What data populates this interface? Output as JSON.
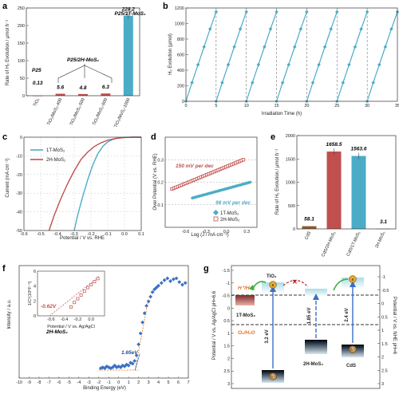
{
  "chart_data": [
    {
      "id": "a",
      "panel_label": "a",
      "type": "bar",
      "ylabel": "Rate of H₂ Evolution / μmol h⁻¹",
      "ylim": [
        0,
        250
      ],
      "yticks": [
        "0",
        "50",
        "100",
        "150",
        "200",
        "250"
      ],
      "categories": [
        "TiO₂",
        "TiO₂/MoS₂-400",
        "TiO₂/MoS₂-500",
        "TiO₂/MoS₂-600",
        "TiO₂/MoS₂-1000"
      ],
      "values": [
        0.13,
        5.6,
        4.8,
        6.3,
        228.2
      ],
      "value_labels": [
        "0.13",
        "5.6",
        "4.8",
        "6.3",
        "228.2"
      ],
      "annotations": [
        "P25",
        "P25/2H-MoS₂",
        "P25/1T-MoS₂"
      ],
      "colors": [
        "#c0504d",
        "#c0504d",
        "#c0504d",
        "#c0504d",
        "#4bacc6"
      ]
    },
    {
      "id": "b",
      "panel_label": "b",
      "type": "line",
      "xlabel": "Irradiation Time (h)",
      "ylabel": "H₂ Evolution (μmol)",
      "xlim": [
        0,
        35
      ],
      "ylim": [
        0,
        1200
      ],
      "xticks": [
        "0",
        "5",
        "10",
        "15",
        "20",
        "25",
        "30",
        "35"
      ],
      "yticks": [
        "0",
        "200",
        "400",
        "600",
        "800",
        "1000",
        "1200"
      ],
      "cycles": 7,
      "cycle_length_h": 5,
      "cycle_points": [
        [
          0,
          0
        ],
        [
          1,
          240
        ],
        [
          2,
          470
        ],
        [
          3,
          700
        ],
        [
          4,
          930
        ],
        [
          5,
          1150
        ]
      ],
      "color": "#4bacc6"
    },
    {
      "id": "c",
      "panel_label": "c",
      "type": "line",
      "xlabel": "Potential / V vs. RHE",
      "ylabel": "Current (mA cm⁻²)",
      "xlim": [
        -0.6,
        0.1
      ],
      "ylim": [
        -50,
        0
      ],
      "xticks": [
        "-0.6",
        "-0.5",
        "-0.4",
        "-0.3",
        "-0.2",
        "-0.1",
        "0.0",
        "0.1"
      ],
      "yticks": [
        "0",
        "-10",
        "-20",
        "-30",
        "-40",
        "-50"
      ],
      "series": [
        {
          "name": "1T-MoS₂",
          "color": "#4bacc6",
          "x": [
            -0.3,
            -0.28,
            -0.25,
            -0.22,
            -0.19,
            -0.16,
            -0.13,
            -0.1,
            -0.07,
            -0.04,
            0.0,
            0.05,
            0.1
          ],
          "y": [
            -50,
            -42,
            -32,
            -23,
            -15,
            -9,
            -5,
            -2.5,
            -1.2,
            -0.5,
            -0.1,
            0,
            0
          ]
        },
        {
          "name": "2H-MoS₂",
          "color": "#c0504d",
          "x": [
            -0.45,
            -0.42,
            -0.38,
            -0.34,
            -0.3,
            -0.26,
            -0.22,
            -0.18,
            -0.14,
            -0.1,
            -0.05,
            0.0,
            0.05,
            0.1
          ],
          "y": [
            -50,
            -42,
            -33,
            -25,
            -18,
            -12,
            -8,
            -5,
            -3,
            -1.6,
            -0.6,
            -0.2,
            0,
            0
          ]
        }
      ]
    },
    {
      "id": "d",
      "panel_label": "d",
      "type": "scatter",
      "xlabel": "Log (J / mA cm⁻²)",
      "ylabel": "Over Potential (V vs. RHE)",
      "xlim": [
        -0.9,
        0.45
      ],
      "ylim": [
        0.0,
        0.4
      ],
      "xticks": [
        "-0.6",
        "-0.3",
        "0.0",
        "0.3"
      ],
      "yticks": [
        "0.1",
        "0.2",
        "0.3"
      ],
      "series": [
        {
          "name": "1T-MoS₂",
          "color": "#4bacc6",
          "x_range": [
            -0.5,
            0.35
          ],
          "y_range": [
            0.13,
            0.2
          ]
        },
        {
          "name": "2H-MoS₂",
          "color": "#c0504d",
          "x_range": [
            -0.8,
            0.25
          ],
          "y_range": [
            0.17,
            0.3
          ]
        }
      ],
      "annotations": [
        "150 mV per dec",
        "98 mV per dec"
      ]
    },
    {
      "id": "e",
      "panel_label": "e",
      "type": "bar",
      "ylabel": "Rate of H₂ Evolution / μmol h⁻¹",
      "ylim": [
        0,
        2000
      ],
      "yticks": [
        "0",
        "500",
        "1000",
        "1500",
        "2000"
      ],
      "categories": [
        "CdS",
        "CdS/2H-MoS₂",
        "CdS/1T-MoS₂",
        "2H-MoS₂"
      ],
      "values": [
        58.1,
        1658.5,
        1563.6,
        3.1
      ],
      "value_labels": [
        "58.1",
        "1658.5",
        "1563.6",
        "3.1"
      ],
      "colors": [
        "#8b5a2b",
        "#c0504d",
        "#4bacc6",
        "#999999"
      ]
    },
    {
      "id": "f",
      "panel_label": "f",
      "type": "scatter",
      "xlabel": "Binding Energy (eV)",
      "ylabel": "Intensity / a.u.",
      "xlim": [
        -10,
        7
      ],
      "xticks": [
        "-10",
        "-9",
        "-8",
        "-7",
        "-6",
        "-5",
        "-4",
        "-3",
        "-2",
        "-1",
        "0",
        "1",
        "2",
        "3",
        "4",
        "5",
        "6",
        "7"
      ],
      "sample": "2H-MoS₂",
      "edge_label": "1.65eV",
      "x": [
        -1.8,
        -1.6,
        -1.4,
        -1.2,
        -1.0,
        -0.8,
        -0.6,
        -0.4,
        -0.2,
        0.0,
        0.2,
        0.4,
        0.6,
        0.8,
        1.0,
        1.2,
        1.4,
        1.6,
        1.8,
        2.0,
        2.2,
        2.4,
        2.6,
        2.8,
        3.0,
        3.2,
        3.4,
        3.6,
        3.8,
        4.0,
        4.3,
        4.6,
        4.9,
        5.2,
        5.5,
        5.8,
        6.1,
        6.4,
        6.7
      ],
      "y": [
        0.02,
        0.03,
        0.02,
        0.04,
        0.03,
        0.02,
        0.03,
        0.05,
        0.03,
        0.04,
        0.03,
        0.05,
        0.04,
        0.06,
        0.05,
        0.08,
        0.07,
        0.1,
        0.16,
        0.28,
        0.4,
        0.52,
        0.62,
        0.7,
        0.75,
        0.8,
        0.85,
        0.88,
        0.9,
        0.92,
        0.95,
        0.98,
        1.0,
        0.97,
        0.99,
        1.0,
        0.96,
        0.93,
        0.95
      ],
      "color": "#3a6fc4",
      "inset": {
        "xlabel": "Potential / V vs. Ag/AgCl",
        "ylabel": "1/C²(10⁸F⁻²)",
        "xticks": [
          "-0.6",
          "-0.4",
          "-0.2",
          "0.0"
        ],
        "yticks": [
          "0",
          "2",
          "4",
          "6"
        ],
        "intercept_label": "-0.62V",
        "x": [
          -0.3,
          -0.25,
          -0.2,
          -0.15,
          -0.1,
          -0.05,
          0.0,
          0.05,
          0.1
        ],
        "y": [
          1.2,
          1.8,
          2.3,
          2.8,
          3.3,
          3.8,
          4.2,
          4.6,
          5.0
        ],
        "color": "#c0504d"
      }
    },
    {
      "id": "g",
      "panel_label": "g",
      "type": "diagram",
      "left_axis_label": "Potential / V vs. Ag/AgCl pH=6.6",
      "right_axis_label": "Potential / V vs. NHE pH=6",
      "left_ticks": [
        "-1.5",
        "-1",
        "-0.5",
        "0",
        "0.5",
        "1",
        "1.5",
        "2",
        "2.5",
        "3"
      ],
      "right_ticks": [
        "-1",
        "-0.5",
        "0",
        "0.5",
        "1",
        "1.5",
        "2",
        "2.5",
        "3"
      ],
      "labels": {
        "h_couple": "H⁺/H₂",
        "o_couple": "O₂/H₂O",
        "tio2": "TiO₂",
        "mos2_1t": "1T-MoS₂",
        "mos2_2h": "2H-MoS₂",
        "cds": "CdS",
        "gap_tio2": "3.2 eV",
        "gap_2h": "1.85 eV",
        "gap_cds": "2.4 eV",
        "electron": "e",
        "hole": "h⁺"
      }
    }
  ]
}
